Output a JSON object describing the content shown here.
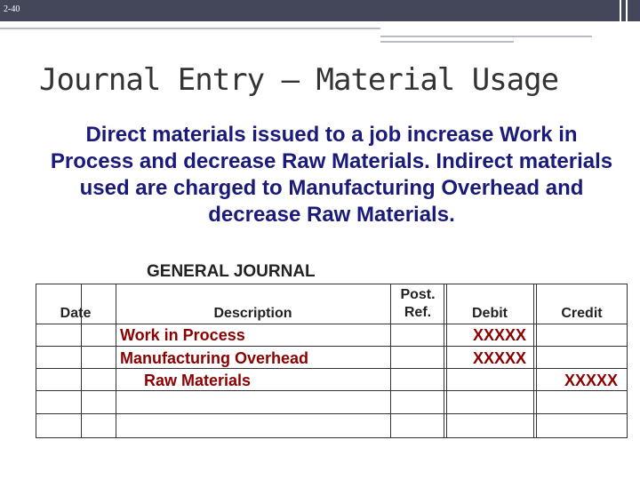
{
  "slide": {
    "number": "2-40"
  },
  "title": "Journal Entry – Material Usage",
  "body": "Direct materials issued to a job increase Work in Process and decrease Raw Materials. Indirect materials used are charged to Manufacturing Overhead and decrease Raw Materials.",
  "journal": {
    "heading": "GENERAL JOURNAL",
    "columns": {
      "date": "Date",
      "description": "Description",
      "post_ref": "Post. Ref.",
      "debit": "Debit",
      "credit": "Credit"
    },
    "rows": [
      {
        "description": "Work in Process",
        "debit": "XXXXX",
        "credit": ""
      },
      {
        "description": "Manufacturing Overhead",
        "debit": "XXXXX",
        "credit": ""
      },
      {
        "description": "Raw Materials",
        "debit": "",
        "credit": "XXXXX"
      },
      {
        "description": "",
        "debit": "",
        "credit": ""
      },
      {
        "description": "",
        "debit": "",
        "credit": ""
      }
    ]
  },
  "colors": {
    "title_bar": "#44475a",
    "body_text": "#1a1a7a",
    "entry_text": "#8b0000"
  }
}
